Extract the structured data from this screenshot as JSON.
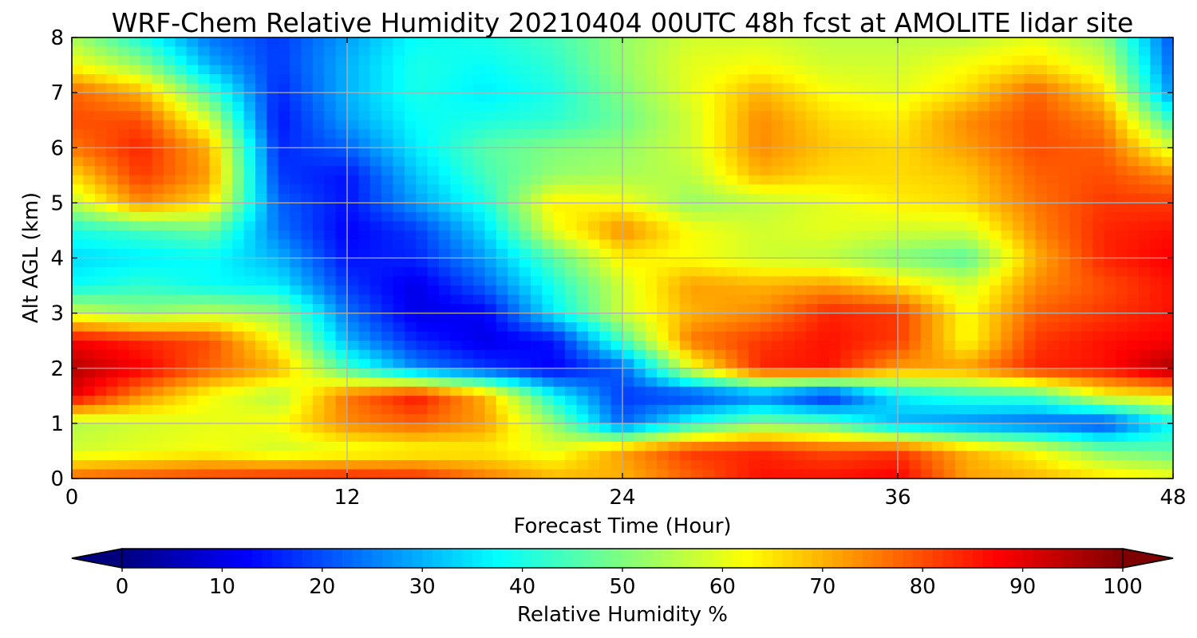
{
  "chart_data": {
    "type": "heatmap",
    "title": "WRF-Chem Relative Humidity 20210404 00UTC 48h fcst at AMOLITE lidar site",
    "xlabel": "Forecast Time (Hour)",
    "ylabel": "Alt AGL (km)",
    "xlim": [
      0,
      48
    ],
    "ylim": [
      0,
      8
    ],
    "x_ticks": [
      "0",
      "12",
      "24",
      "36",
      "48"
    ],
    "y_ticks": [
      "0",
      "1",
      "2",
      "3",
      "4",
      "5",
      "6",
      "7",
      "8"
    ],
    "grid": true,
    "colorbar": {
      "label": "Relative Humidity %",
      "ticks": [
        "0",
        "10",
        "20",
        "30",
        "40",
        "50",
        "60",
        "70",
        "80",
        "90",
        "100"
      ],
      "range": [
        0,
        100
      ],
      "colormap": "jet",
      "extend": "both",
      "under_color": "#00007f",
      "over_color": "#7f0000"
    },
    "x": [
      0,
      3,
      6,
      9,
      12,
      15,
      18,
      21,
      24,
      27,
      30,
      33,
      36,
      39,
      42,
      45,
      48
    ],
    "y": [
      0,
      0.5,
      1,
      1.5,
      2,
      2.5,
      3,
      3.5,
      4,
      4.5,
      5,
      5.5,
      6,
      6.5,
      7,
      7.5,
      8
    ],
    "values": [
      [
        78,
        80,
        82,
        84,
        85,
        84,
        76,
        70,
        70,
        78,
        86,
        86,
        88,
        72,
        70,
        66,
        62
      ],
      [
        58,
        60,
        62,
        58,
        60,
        62,
        64,
        60,
        72,
        82,
        84,
        80,
        82,
        70,
        62,
        50,
        46
      ],
      [
        55,
        58,
        60,
        62,
        74,
        78,
        72,
        52,
        22,
        40,
        50,
        46,
        30,
        26,
        22,
        18,
        38
      ],
      [
        90,
        74,
        62,
        55,
        76,
        86,
        70,
        38,
        18,
        18,
        24,
        14,
        36,
        42,
        44,
        62,
        66
      ],
      [
        95,
        88,
        78,
        70,
        44,
        26,
        18,
        12,
        22,
        60,
        84,
        86,
        72,
        72,
        84,
        86,
        96
      ],
      [
        88,
        84,
        80,
        62,
        30,
        16,
        10,
        14,
        44,
        76,
        82,
        86,
        82,
        62,
        82,
        86,
        88
      ],
      [
        58,
        52,
        56,
        52,
        24,
        10,
        12,
        36,
        58,
        70,
        74,
        84,
        82,
        62,
        78,
        82,
        86
      ],
      [
        38,
        42,
        38,
        36,
        18,
        10,
        22,
        40,
        58,
        72,
        70,
        72,
        66,
        58,
        74,
        80,
        86
      ],
      [
        34,
        36,
        38,
        30,
        14,
        16,
        28,
        46,
        64,
        62,
        58,
        56,
        50,
        46,
        70,
        84,
        88
      ],
      [
        40,
        44,
        48,
        24,
        12,
        18,
        34,
        60,
        74,
        62,
        58,
        60,
        58,
        58,
        74,
        84,
        86
      ],
      [
        56,
        74,
        66,
        22,
        14,
        28,
        40,
        64,
        62,
        52,
        56,
        60,
        64,
        66,
        76,
        82,
        82
      ],
      [
        66,
        82,
        72,
        18,
        14,
        32,
        44,
        52,
        54,
        56,
        70,
        66,
        66,
        68,
        78,
        80,
        74
      ],
      [
        76,
        84,
        70,
        16,
        22,
        36,
        46,
        50,
        52,
        58,
        74,
        68,
        66,
        72,
        80,
        78,
        58
      ],
      [
        80,
        80,
        58,
        14,
        28,
        38,
        40,
        42,
        48,
        58,
        74,
        66,
        64,
        74,
        80,
        74,
        42
      ],
      [
        78,
        70,
        44,
        16,
        30,
        40,
        36,
        40,
        50,
        60,
        70,
        62,
        60,
        66,
        78,
        66,
        26
      ],
      [
        62,
        52,
        30,
        18,
        30,
        40,
        38,
        42,
        52,
        60,
        62,
        58,
        58,
        62,
        66,
        58,
        22
      ],
      [
        54,
        40,
        24,
        18,
        28,
        38,
        40,
        44,
        52,
        58,
        58,
        56,
        56,
        56,
        60,
        52,
        20
      ]
    ]
  }
}
